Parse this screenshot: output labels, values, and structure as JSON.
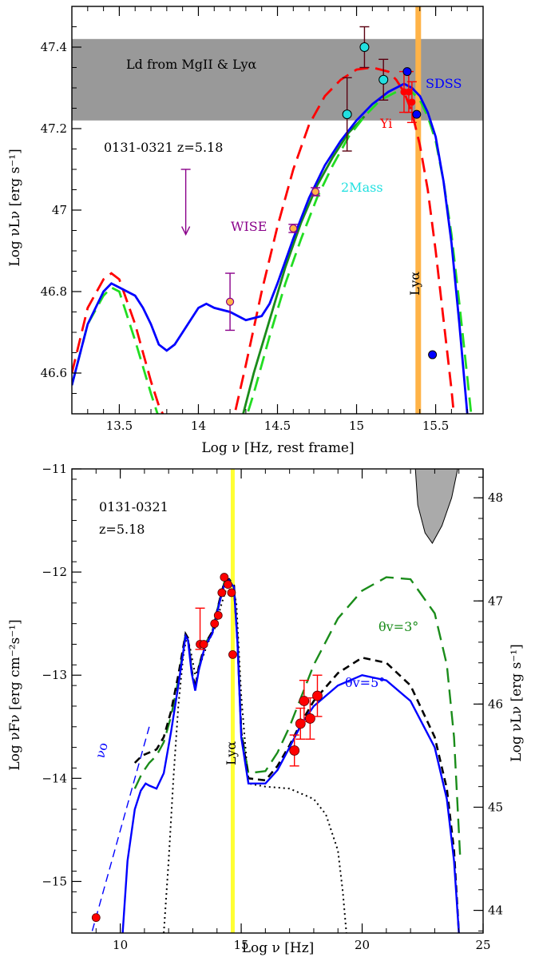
{
  "colors": {
    "red": "#ff0000",
    "blue": "#0000ff",
    "green": "#1a8c1a",
    "lightgreen": "#22dd22",
    "cyan": "#22e0e0",
    "purple": "#8a008a",
    "orange": "#ffb347",
    "yellow": "#ffff33",
    "gray": "#999999",
    "black": "#000000",
    "darkred": "#5a0010"
  },
  "chart_data": [
    {
      "type": "line",
      "xlabel": "Log ν  [Hz, rest frame]",
      "ylabel": "Log νLν  [erg s⁻¹]",
      "xlim": [
        13.2,
        15.8
      ],
      "ylim": [
        46.5,
        47.5
      ],
      "xticks": [
        13.5,
        14,
        14.5,
        15,
        15.5
      ],
      "xtick_labels": [
        "13.5",
        "14",
        "14.5",
        "15",
        "15.5"
      ],
      "yticks": [
        46.6,
        46.8,
        47,
        47.2,
        47.4
      ],
      "ytick_labels": [
        "46.6",
        "46.8",
        "47",
        "47.2",
        "47.4"
      ],
      "band": {
        "y1": 47.22,
        "y2": 47.42,
        "label": "Ld from MgII & Lyα"
      },
      "vline": {
        "x": 15.39,
        "label": "Lyα"
      },
      "object_label": "0131-0321  z=5.18",
      "annotations": {
        "wise": "WISE",
        "twomass": "2Mass",
        "sdss": "SDSS",
        "yi": "Yi"
      },
      "series": [
        {
          "x": [
            13.2,
            13.3,
            13.4,
            13.45,
            13.5,
            13.6,
            13.65,
            13.7,
            13.75,
            13.8,
            13.85,
            13.9,
            14.0,
            14.05,
            14.1,
            14.2,
            14.3,
            14.4,
            14.45,
            14.5,
            14.6,
            14.7,
            14.8,
            14.9,
            15.0,
            15.1,
            15.2,
            15.25,
            15.3,
            15.35,
            15.4,
            15.45,
            15.5,
            15.55,
            15.6,
            15.65,
            15.7
          ],
          "y": [
            46.57,
            46.72,
            46.8,
            46.82,
            46.81,
            46.79,
            46.76,
            46.72,
            46.67,
            46.655,
            46.67,
            46.7,
            46.76,
            46.77,
            46.76,
            46.75,
            46.73,
            46.74,
            46.77,
            46.82,
            46.93,
            47.03,
            47.11,
            47.17,
            47.22,
            47.26,
            47.29,
            47.3,
            47.31,
            47.3,
            47.28,
            47.24,
            47.18,
            47.07,
            46.92,
            46.72,
            46.5
          ]
        },
        {
          "x": [
            13.2,
            13.3,
            13.4,
            13.45,
            13.5,
            13.6,
            13.7,
            13.75,
            13.8,
            13.83,
            14.2,
            14.3,
            14.4,
            14.5,
            14.6,
            14.7,
            14.8,
            14.9,
            15.0,
            15.1,
            15.2,
            15.25,
            15.3,
            15.35,
            15.4,
            15.45,
            15.5,
            15.55,
            15.6,
            15.62
          ],
          "y": [
            46.6,
            46.76,
            46.83,
            46.845,
            46.83,
            46.72,
            46.58,
            46.52,
            46.48,
            46.45,
            46.45,
            46.62,
            46.8,
            46.96,
            47.1,
            47.21,
            47.28,
            47.32,
            47.345,
            47.35,
            47.34,
            47.32,
            47.29,
            47.24,
            47.16,
            47.05,
            46.9,
            46.73,
            46.56,
            46.48
          ]
        },
        {
          "x": [
            13.2,
            13.3,
            13.4,
            13.45,
            13.5,
            13.6,
            13.7,
            13.75,
            13.78,
            14.27,
            14.35,
            14.45,
            14.55,
            14.65,
            14.75,
            14.85,
            14.95,
            15.05,
            15.15,
            15.2,
            15.25,
            15.3,
            15.35,
            15.4,
            15.45,
            15.5,
            15.55,
            15.6,
            15.65,
            15.7,
            15.73
          ],
          "y": [
            46.57,
            46.72,
            46.79,
            46.81,
            46.8,
            46.68,
            46.55,
            46.49,
            46.45,
            46.45,
            46.55,
            46.69,
            46.82,
            46.93,
            47.03,
            47.11,
            47.18,
            47.23,
            47.27,
            47.28,
            47.29,
            47.295,
            47.29,
            47.27,
            47.23,
            47.17,
            47.07,
            46.94,
            46.77,
            46.59,
            46.48
          ]
        },
        {
          "x": [
            14.25,
            14.35,
            14.45,
            14.55,
            14.65,
            14.75,
            14.85,
            14.95,
            15.05
          ],
          "y": [
            46.45,
            46.6,
            46.73,
            46.86,
            46.97,
            47.06,
            47.13,
            47.19,
            47.23
          ]
        }
      ],
      "points_2mass": [
        {
          "x": 14.94,
          "y": 47.235,
          "err": 0.09
        },
        {
          "x": 15.05,
          "y": 47.4,
          "err": 0.05
        },
        {
          "x": 15.17,
          "y": 47.32,
          "err": 0.05
        }
      ],
      "points_wise": [
        {
          "x": 14.2,
          "y": 46.775,
          "err": 0.07
        },
        {
          "x": 14.6,
          "y": 46.955,
          "err": 0.01
        },
        {
          "x": 14.74,
          "y": 47.045,
          "err": 0.01
        }
      ],
      "wise_upper_limit": {
        "x": 13.92,
        "y": 47.1,
        "y_arrow": 46.94
      },
      "points_sdss": [
        {
          "x": 15.32,
          "y": 47.34
        },
        {
          "x": 15.38,
          "y": 47.235
        },
        {
          "x": 15.48,
          "y": 46.645
        }
      ],
      "points_yi": [
        {
          "x": 15.3,
          "y": 47.29,
          "err": 0.05
        },
        {
          "x": 15.33,
          "y": 47.29,
          "err": 0.05
        },
        {
          "x": 15.35,
          "y": 47.265,
          "err": 0.05
        }
      ]
    },
    {
      "type": "line",
      "xlabel": "Log ν  [Hz]",
      "ylabel": "Log νFν  [erg cm⁻²s⁻¹]",
      "ylabel_right": "Log νLν  [erg s⁻¹]",
      "xlim": [
        8,
        25
      ],
      "ylim": [
        -15.5,
        -11
      ],
      "xticks": [
        10,
        15,
        20,
        25
      ],
      "xtick_labels": [
        "10",
        "15",
        "20",
        "25"
      ],
      "yticks": [
        -15,
        -14,
        -13,
        -12,
        -11
      ],
      "ytick_labels": [
        "−15",
        "−14",
        "−13",
        "−12",
        "−11"
      ],
      "right_yticks": [
        44,
        45,
        46,
        47,
        48
      ],
      "right_ytick_labels": [
        "44",
        "45",
        "46",
        "47",
        "48"
      ],
      "right_offset": 59.28,
      "vline": {
        "x": 14.65,
        "label": "Lyα"
      },
      "object_label_1": "0131-0321",
      "object_label_2": "z=5.18",
      "theta_3": "θv=3°",
      "theta_5": "θv=5°",
      "nu0": "νο",
      "series": [
        {
          "x": [
            10.1,
            10.3,
            10.6,
            10.85,
            11.05,
            11.2,
            11.5,
            11.8,
            12.1,
            12.4,
            12.7,
            12.8,
            12.95,
            13.1,
            13.25,
            13.5,
            13.8,
            14.1,
            14.3,
            14.5,
            14.7,
            14.85,
            15.0,
            15.3,
            16.0,
            16.5,
            17.0,
            17.5,
            18.0,
            19.0,
            20.0,
            21.0,
            22.0,
            23.0,
            23.5,
            23.8,
            24.0
          ],
          "y": [
            -15.5,
            -14.8,
            -14.3,
            -14.12,
            -14.05,
            -14.07,
            -14.1,
            -13.95,
            -13.55,
            -13.1,
            -12.62,
            -12.66,
            -12.98,
            -13.15,
            -12.95,
            -12.72,
            -12.6,
            -12.3,
            -12.12,
            -12.08,
            -12.15,
            -12.7,
            -13.6,
            -14.05,
            -14.05,
            -13.92,
            -13.7,
            -13.47,
            -13.3,
            -13.1,
            -13.0,
            -13.05,
            -13.25,
            -13.7,
            -14.2,
            -14.8,
            -15.5
          ]
        },
        {
          "x": [
            10.6,
            10.9,
            11.2,
            11.5,
            11.8,
            12.1,
            12.4,
            12.7,
            12.8,
            12.95,
            13.1,
            13.25,
            13.5,
            13.8,
            14.1,
            14.3,
            14.5,
            14.7,
            14.85,
            15.0,
            15.3,
            16.0,
            16.5,
            17.0,
            17.5,
            18.0,
            19.0,
            20.0,
            21.0,
            22.0,
            23.0,
            23.5,
            23.8,
            24.0
          ],
          "y": [
            -13.85,
            -13.78,
            -13.75,
            -13.72,
            -13.6,
            -13.35,
            -13.0,
            -12.6,
            -12.64,
            -12.95,
            -13.12,
            -12.92,
            -12.7,
            -12.58,
            -12.28,
            -12.1,
            -12.07,
            -12.13,
            -12.68,
            -13.55,
            -14.0,
            -14.02,
            -13.88,
            -13.68,
            -13.45,
            -13.25,
            -12.98,
            -12.83,
            -12.88,
            -13.1,
            -13.6,
            -14.1,
            -14.7,
            -15.5
          ]
        },
        {
          "x": [
            10.6,
            10.9,
            11.2,
            11.5,
            11.8,
            12.1,
            12.4,
            12.7,
            12.8,
            12.95,
            13.1,
            13.25,
            13.5,
            13.8,
            14.1,
            14.3,
            14.5,
            14.7,
            14.85,
            15.0,
            15.3,
            16.0,
            16.5,
            17.0,
            17.5,
            18.0,
            19.0,
            20.0,
            21.0,
            22.0,
            23.0,
            23.5,
            23.8,
            24.05
          ],
          "y": [
            -14.1,
            -13.95,
            -13.85,
            -13.78,
            -13.65,
            -13.4,
            -13.05,
            -12.6,
            -12.64,
            -12.95,
            -13.12,
            -12.92,
            -12.7,
            -12.58,
            -12.28,
            -12.1,
            -12.07,
            -12.13,
            -12.68,
            -13.55,
            -13.95,
            -13.93,
            -13.75,
            -13.5,
            -13.2,
            -12.9,
            -12.45,
            -12.18,
            -12.05,
            -12.07,
            -12.4,
            -12.9,
            -13.6,
            -14.75
          ]
        },
        {
          "x": [
            11.8,
            12.0,
            12.2,
            12.4,
            12.6,
            12.75,
            12.9,
            13.1,
            13.3,
            13.6,
            13.9,
            14.2,
            14.4,
            14.6,
            14.8,
            15.0,
            15.3,
            16.0,
            17.0,
            18.0,
            18.5,
            19.0,
            19.2,
            19.35
          ],
          "y": [
            -15.5,
            -14.8,
            -14.0,
            -13.3,
            -12.82,
            -12.62,
            -12.75,
            -13.0,
            -12.9,
            -12.7,
            -12.55,
            -12.3,
            -12.15,
            -12.1,
            -12.3,
            -13.2,
            -14.05,
            -14.08,
            -14.1,
            -14.2,
            -14.35,
            -14.7,
            -15.1,
            -15.5
          ]
        },
        {
          "x": [
            8.7,
            11.2
          ],
          "y": [
            -15.6,
            -13.5
          ]
        }
      ],
      "points": [
        {
          "x": 9.0,
          "y": -15.35
        },
        {
          "x": 13.3,
          "y": -12.7,
          "err_up": 0.35,
          "err_dn": 0.05
        },
        {
          "x": 13.45,
          "y": -12.7
        },
        {
          "x": 13.9,
          "y": -12.5
        },
        {
          "x": 14.05,
          "y": -12.42
        },
        {
          "x": 14.2,
          "y": -12.2
        },
        {
          "x": 14.3,
          "y": -12.05
        },
        {
          "x": 14.45,
          "y": -12.12
        },
        {
          "x": 14.6,
          "y": -12.2
        },
        {
          "x": 14.65,
          "y": -12.8
        },
        {
          "x": 17.2,
          "y": -13.73,
          "err": 0.15
        },
        {
          "x": 17.45,
          "y": -13.47,
          "err": 0.15
        },
        {
          "x": 17.6,
          "y": -13.25,
          "err": 0.2
        },
        {
          "x": 17.85,
          "y": -13.42,
          "err": 0.2
        },
        {
          "x": 18.15,
          "y": -13.2,
          "err": 0.2
        }
      ],
      "gray_feature": [
        [
          22.2,
          -11.0
        ],
        [
          22.3,
          -11.35
        ],
        [
          22.6,
          -11.62
        ],
        [
          22.9,
          -11.72
        ],
        [
          23.3,
          -11.55
        ],
        [
          23.7,
          -11.28
        ],
        [
          23.95,
          -11.0
        ]
      ]
    }
  ]
}
